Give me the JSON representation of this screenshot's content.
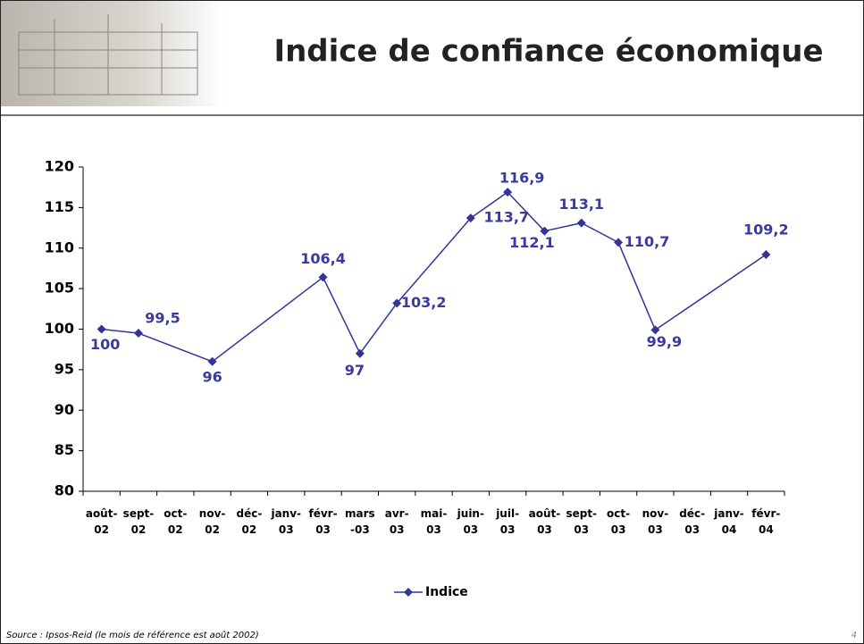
{
  "header": {
    "title": "Indice de confiance économique"
  },
  "chart_data": {
    "type": "line",
    "categories": [
      "août-02",
      "sept-02",
      "oct-02",
      "nov-02",
      "déc-02",
      "janv-03",
      "févr-03",
      "mars-03",
      "avr-03",
      "mai-03",
      "juin-03",
      "juil-03",
      "août-03",
      "sept-03",
      "oct-03",
      "nov-03",
      "déc-03",
      "janv-04",
      "févr-04"
    ],
    "series": [
      {
        "name": "Indice",
        "color": "#333399",
        "values": [
          100,
          99.5,
          null,
          96,
          null,
          null,
          106.4,
          97,
          103.2,
          null,
          113.7,
          116.9,
          112.1,
          113.1,
          110.7,
          99.9,
          null,
          null,
          109.2
        ],
        "value_labels": [
          "100",
          "99,5",
          null,
          "96",
          null,
          null,
          "106,4",
          "97",
          "103,2",
          null,
          "113,7",
          "116,9",
          "112,1",
          "113,1",
          "110,7",
          "99,9",
          null,
          null,
          "109,2"
        ]
      }
    ],
    "ylim": [
      80,
      120
    ],
    "yticks": [
      80,
      85,
      90,
      95,
      100,
      105,
      110,
      115,
      120
    ]
  },
  "footer": {
    "source": "Source : Ipsos-Reid (le mois de référence est août 2002)",
    "page": "4"
  }
}
